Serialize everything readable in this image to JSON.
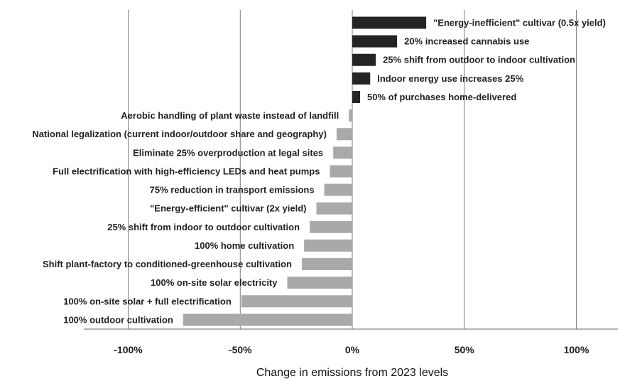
{
  "chart_data": {
    "type": "bar",
    "orientation": "horizontal",
    "title": "",
    "xlabel": "Change in emissions from 2023 levels",
    "ylabel": "",
    "xlim": [
      -125,
      115
    ],
    "grid": true,
    "x_ticks": [
      {
        "value": -100,
        "label": "-100%"
      },
      {
        "value": -50,
        "label": "-50%"
      },
      {
        "value": 0,
        "label": "0%"
      },
      {
        "value": 50,
        "label": "50%"
      },
      {
        "value": 100,
        "label": "100%"
      }
    ],
    "categories": [
      "\"Energy-inefficient\" cultivar (0.5x yield)",
      "20% increased cannabis use",
      "25% shift from outdoor to indoor cultivation",
      "Indoor energy use increases 25%",
      "50% of purchases home-delivered",
      "Aerobic handling of plant waste instead of landfill",
      "National legalization (current indoor/outdoor share and geography)",
      "Eliminate 25% overproduction at legal sites",
      "Full electrification with high-efficiency LEDs and heat pumps",
      "75% reduction in transport emissions",
      "\"Energy-efficient\" cultivar (2x yield)",
      "25% shift from indoor to outdoor cultivation",
      "100% home cultivation",
      "Shift plant-factory to conditioned-greenhouse cultivation",
      "100% on-site solar electricity",
      "100% on-site solar + full electrification",
      "100% outdoor cultivation"
    ],
    "values": [
      33,
      20,
      10.5,
      8,
      3.5,
      -1.5,
      -7,
      -8.5,
      -10,
      -12.5,
      -16,
      -19,
      -21.5,
      -22.5,
      -29,
      -49.5,
      -75.5
    ],
    "colors": {
      "positive": "#242424",
      "negative": "#a9a9a9",
      "grid": "#6f6f6f",
      "text": "#222222"
    }
  }
}
